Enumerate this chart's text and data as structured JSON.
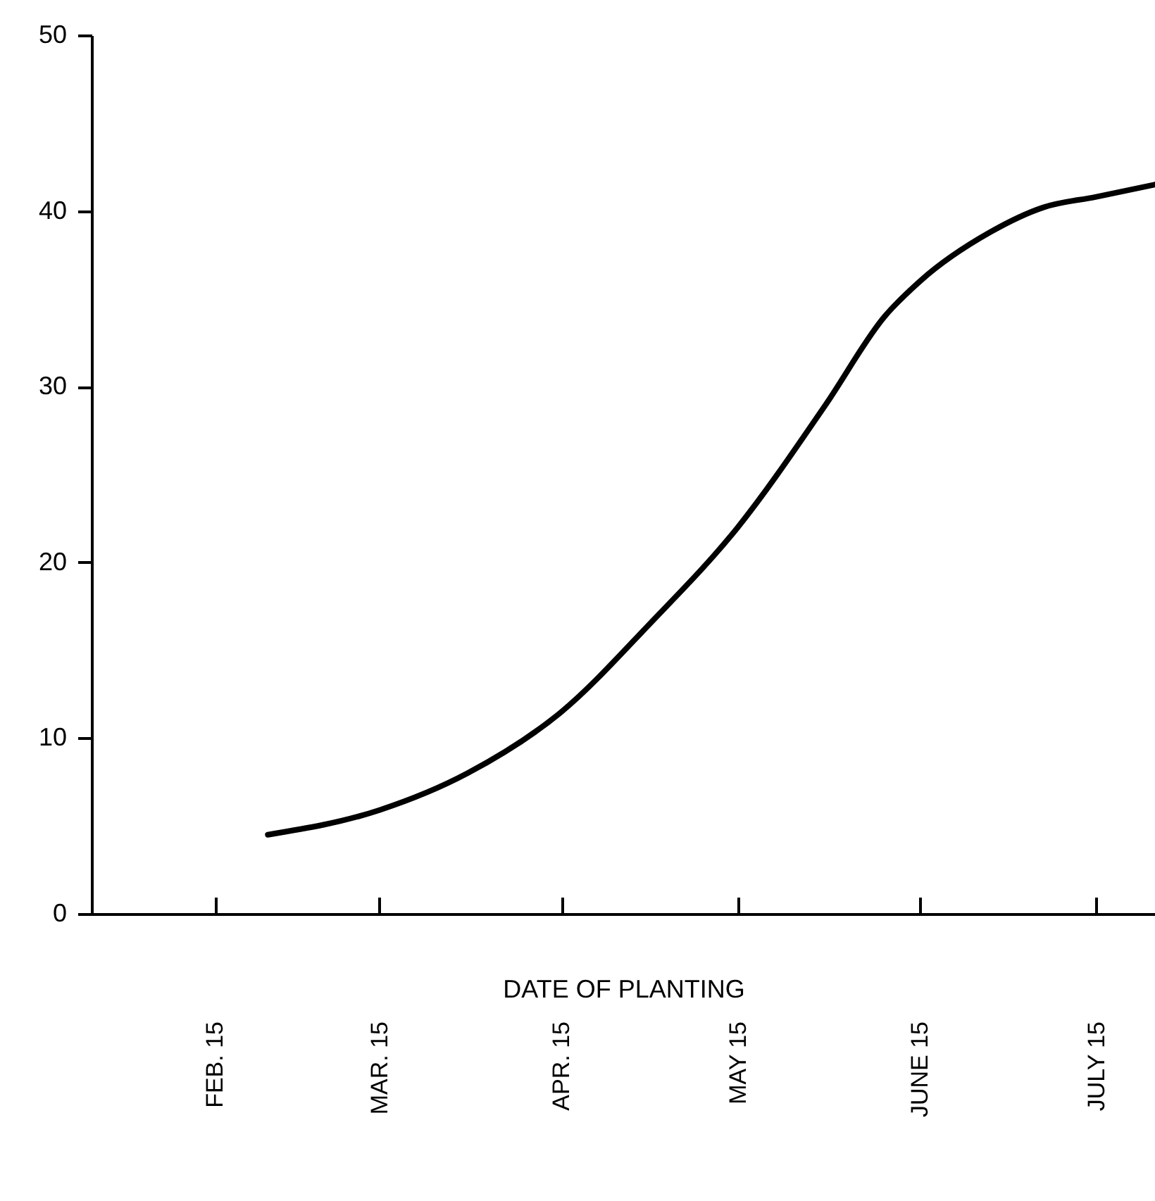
{
  "chart_data": {
    "type": "line",
    "xlabel": "DATE OF PLANTING",
    "x": [
      "--02-24",
      "--03-15",
      "--03-30",
      "--04-15",
      "--04-30",
      "--05-15",
      "--05-30",
      "--06-09",
      "--06-15",
      "--06-27",
      "--07-06",
      "--07-15",
      "--07-25"
    ],
    "series": [
      {
        "color": "#000000",
        "values": [
          4.5,
          5.9,
          8,
          11.5,
          16.5,
          22,
          29,
          34,
          36,
          38.8,
          40.2,
          40.8,
          41.5
        ]
      }
    ],
    "xlim": [
      "--01-25",
      "--07-25"
    ],
    "xticks": [
      {
        "value": "--02-15",
        "label": "FEB. 15"
      },
      {
        "value": "--03-15",
        "label": "MAR. 15"
      },
      {
        "value": "--04-15",
        "label": "APR. 15"
      },
      {
        "value": "--05-15",
        "label": "MAY 15"
      },
      {
        "value": "--06-15",
        "label": "JUNE 15"
      },
      {
        "value": "--07-15",
        "label": "JULY 15"
      }
    ],
    "ylim": [
      0,
      50
    ],
    "yticks": [
      0,
      10,
      20,
      30,
      40,
      50
    ],
    "grid": false,
    "legend": false,
    "marker": "none",
    "line_style": "solid"
  }
}
